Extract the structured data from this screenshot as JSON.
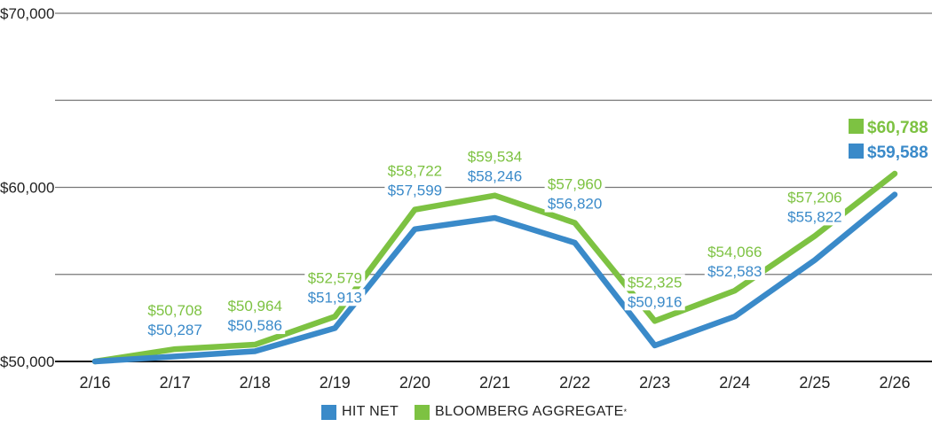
{
  "chart_data": {
    "type": "line",
    "title": "",
    "xlabel": "",
    "ylabel": "",
    "ylim": [
      50000,
      70000
    ],
    "yticks": [
      50000,
      55000,
      60000,
      65000,
      70000
    ],
    "ytick_labels": [
      "$50,000",
      "",
      "$60,000",
      "",
      "$70,000"
    ],
    "grid": true,
    "categories": [
      "2/16",
      "2/17",
      "2/18",
      "2/19",
      "2/20",
      "2/21",
      "2/22",
      "2/23",
      "2/24",
      "2/25",
      "2/26"
    ],
    "series": [
      {
        "name": "HIT NET",
        "color": "#3a8ac9",
        "values": [
          50000,
          50287,
          50586,
          51913,
          57599,
          58246,
          56820,
          50916,
          52583,
          55822,
          59588
        ],
        "labels": [
          null,
          "$50,287",
          "$50,586",
          "$51,913",
          "$57,599",
          "$58,246",
          "$56,820",
          "$50,916",
          "$52,583",
          "$55,822",
          null
        ],
        "end_label": "$59,588"
      },
      {
        "name": "BLOOMBERG AGGREGATE",
        "name_suffix": "*",
        "color": "#7dc242",
        "values": [
          50000,
          50708,
          50964,
          52579,
          58722,
          59534,
          57960,
          52325,
          54066,
          57206,
          60788
        ],
        "labels": [
          null,
          "$50,708",
          "$50,964",
          "$52,579",
          "$58,722",
          "$59,534",
          "$57,960",
          "$52,325",
          "$54,066",
          "$57,206",
          null
        ],
        "end_label": "$60,788"
      }
    ],
    "legend": "bottom-center"
  },
  "legend": {
    "hit_net": "HIT NET",
    "bloomberg": "BLOOMBERG AGGREGATE",
    "bloomberg_suffix": "*"
  }
}
